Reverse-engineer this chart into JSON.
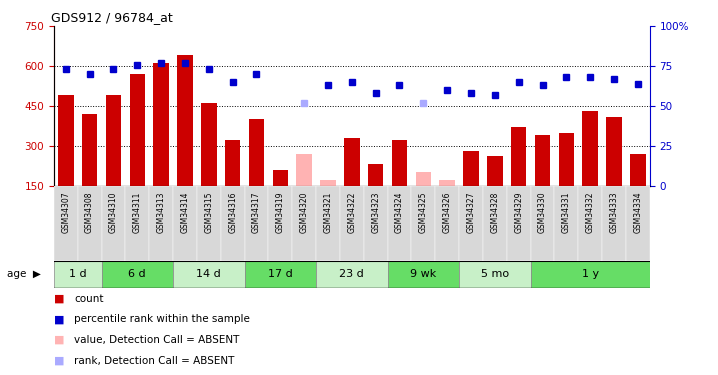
{
  "title": "GDS912 / 96784_at",
  "samples": [
    "GSM34307",
    "GSM34308",
    "GSM34310",
    "GSM34311",
    "GSM34313",
    "GSM34314",
    "GSM34315",
    "GSM34316",
    "GSM34317",
    "GSM34319",
    "GSM34320",
    "GSM34321",
    "GSM34322",
    "GSM34323",
    "GSM34324",
    "GSM34325",
    "GSM34326",
    "GSM34327",
    "GSM34328",
    "GSM34329",
    "GSM34330",
    "GSM34331",
    "GSM34332",
    "GSM34333",
    "GSM34334"
  ],
  "count_values": [
    490,
    420,
    490,
    570,
    610,
    640,
    460,
    320,
    400,
    210,
    null,
    null,
    330,
    230,
    320,
    null,
    null,
    280,
    260,
    370,
    340,
    350,
    430,
    410,
    270
  ],
  "count_absent": [
    null,
    null,
    null,
    null,
    null,
    null,
    null,
    null,
    null,
    null,
    270,
    170,
    null,
    null,
    null,
    200,
    170,
    null,
    null,
    null,
    null,
    null,
    null,
    null,
    null
  ],
  "rank_values": [
    73,
    70,
    73,
    76,
    77,
    77,
    73,
    65,
    70,
    null,
    null,
    63,
    65,
    58,
    63,
    null,
    60,
    58,
    57,
    65,
    63,
    68,
    68,
    67,
    64
  ],
  "rank_absent": [
    null,
    null,
    null,
    null,
    null,
    null,
    null,
    null,
    null,
    null,
    52,
    null,
    null,
    null,
    null,
    52,
    null,
    null,
    null,
    null,
    null,
    null,
    null,
    null,
    null
  ],
  "age_groups": [
    {
      "label": "1 d",
      "start": 0,
      "end": 2
    },
    {
      "label": "6 d",
      "start": 2,
      "end": 5
    },
    {
      "label": "14 d",
      "start": 5,
      "end": 8
    },
    {
      "label": "17 d",
      "start": 8,
      "end": 11
    },
    {
      "label": "23 d",
      "start": 11,
      "end": 14
    },
    {
      "label": "9 wk",
      "start": 14,
      "end": 17
    },
    {
      "label": "5 mo",
      "start": 17,
      "end": 20
    },
    {
      "label": "1 y",
      "start": 20,
      "end": 25
    }
  ],
  "ylim_left": [
    150,
    750
  ],
  "ylim_right": [
    0,
    100
  ],
  "yticks_left": [
    150,
    300,
    450,
    600,
    750
  ],
  "yticks_right": [
    0,
    25,
    50,
    75,
    100
  ],
  "bar_color": "#cc0000",
  "bar_absent_color": "#ffb3b3",
  "rank_color": "#0000cc",
  "rank_absent_color": "#aaaaff",
  "grid_color": "#000000",
  "bg_age_light": "#c8f0c8",
  "bg_age_dark": "#66dd66",
  "bg_age_odd": "#e8e8e8",
  "bar_width": 0.65,
  "legend": [
    {
      "color": "#cc0000",
      "label": "count"
    },
    {
      "color": "#0000cc",
      "label": "percentile rank within the sample"
    },
    {
      "color": "#ffb3b3",
      "label": "value, Detection Call = ABSENT"
    },
    {
      "color": "#aaaaff",
      "label": "rank, Detection Call = ABSENT"
    }
  ]
}
